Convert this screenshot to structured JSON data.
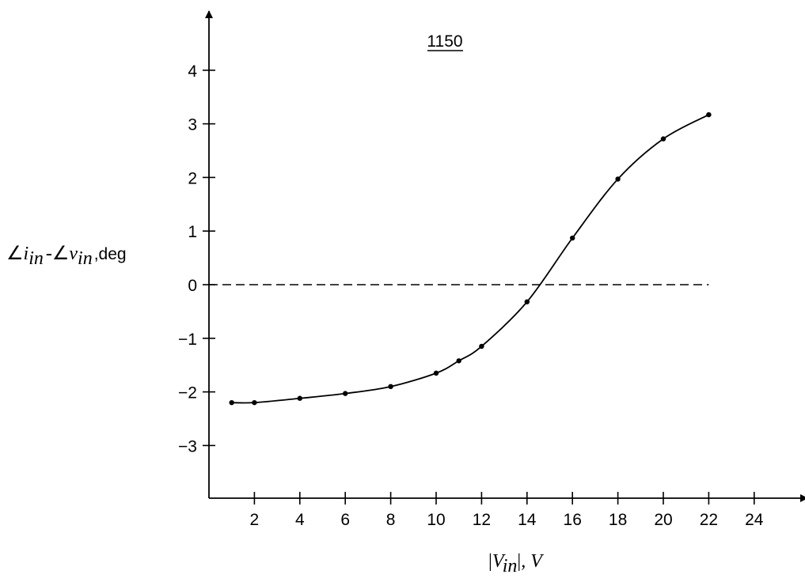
{
  "chart_data": {
    "type": "line",
    "title": "1150",
    "xlabel": {
      "bar": "|",
      "main": "V",
      "sub": "in",
      "suffix": ", V"
    },
    "ylabel": {
      "angle1": "∠",
      "main1": "i",
      "sub1": "in",
      "minus": "-",
      "angle2": "∠",
      "main2": "v",
      "sub2": "in",
      "suffix": ",deg"
    },
    "xlim": [
      0,
      26
    ],
    "ylim": [
      -4,
      5
    ],
    "xticks": [
      2,
      4,
      6,
      8,
      10,
      12,
      14,
      16,
      18,
      20,
      22,
      24
    ],
    "yticks": [
      4,
      3,
      2,
      1,
      0,
      -1,
      -2,
      -3
    ],
    "reference_line": {
      "y": 0,
      "x_start": 0,
      "x_end": 22,
      "style": "dashed"
    },
    "series": [
      {
        "x": [
          1,
          2,
          4,
          6,
          8,
          10,
          11,
          12,
          14,
          16,
          18,
          20,
          22
        ],
        "y": [
          -2.2,
          -2.2,
          -2.12,
          -2.03,
          -1.9,
          -1.65,
          -1.42,
          -1.15,
          -0.32,
          0.87,
          1.97,
          2.72,
          3.17
        ]
      }
    ],
    "colors": {
      "line": "#000000",
      "background": "#ffffff"
    }
  }
}
